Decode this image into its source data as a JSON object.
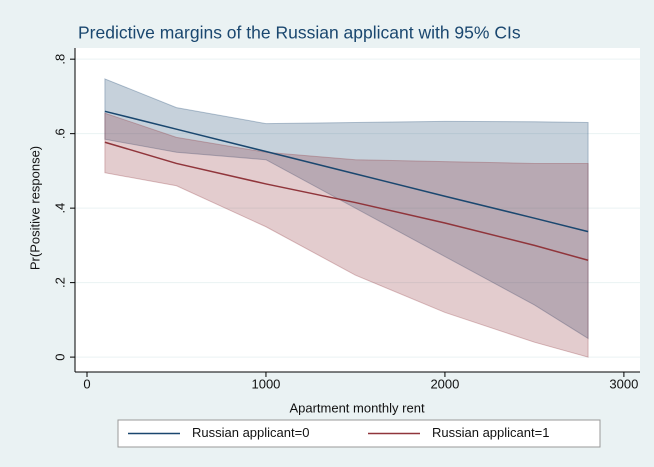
{
  "chart_data": {
    "type": "line-ci",
    "title": "Predictive margins of the Russian applicant with 95% CIs",
    "x_label": "Apartment monthly rent",
    "y_label": "Pr(Positive response)",
    "x": [
      100,
      500,
      1000,
      1500,
      2000,
      2500,
      2800
    ],
    "series": [
      {
        "name": "Russian applicant=0",
        "color": "#1a476f",
        "values": [
          0.66,
          0.612,
          0.552,
          0.492,
          0.432,
          0.373,
          0.337
        ],
        "upper": [
          0.747,
          0.67,
          0.627,
          0.63,
          0.633,
          0.632,
          0.63
        ],
        "lower": [
          0.585,
          0.55,
          0.53,
          0.4,
          0.27,
          0.14,
          0.05
        ]
      },
      {
        "name": "Russian applicant=1",
        "color": "#90353b",
        "values": [
          0.577,
          0.52,
          0.465,
          0.415,
          0.36,
          0.3,
          0.26
        ],
        "upper": [
          0.655,
          0.59,
          0.55,
          0.53,
          0.525,
          0.52,
          0.52
        ],
        "lower": [
          0.495,
          0.46,
          0.35,
          0.22,
          0.12,
          0.04,
          0.0
        ]
      }
    ],
    "xlim": [
      -67,
      3090
    ],
    "ylim": [
      -0.04,
      0.83
    ],
    "xticks": [
      0,
      1000,
      2000,
      3000
    ],
    "yticks": [
      0,
      {
        "value": 0.2,
        "label": ".2"
      },
      {
        "value": 0.4,
        "label": ".4"
      },
      {
        "value": 0.6,
        "label": ".6"
      },
      {
        "value": 0.8,
        "label": ".8"
      }
    ],
    "grid": true,
    "legend": "bottom"
  }
}
